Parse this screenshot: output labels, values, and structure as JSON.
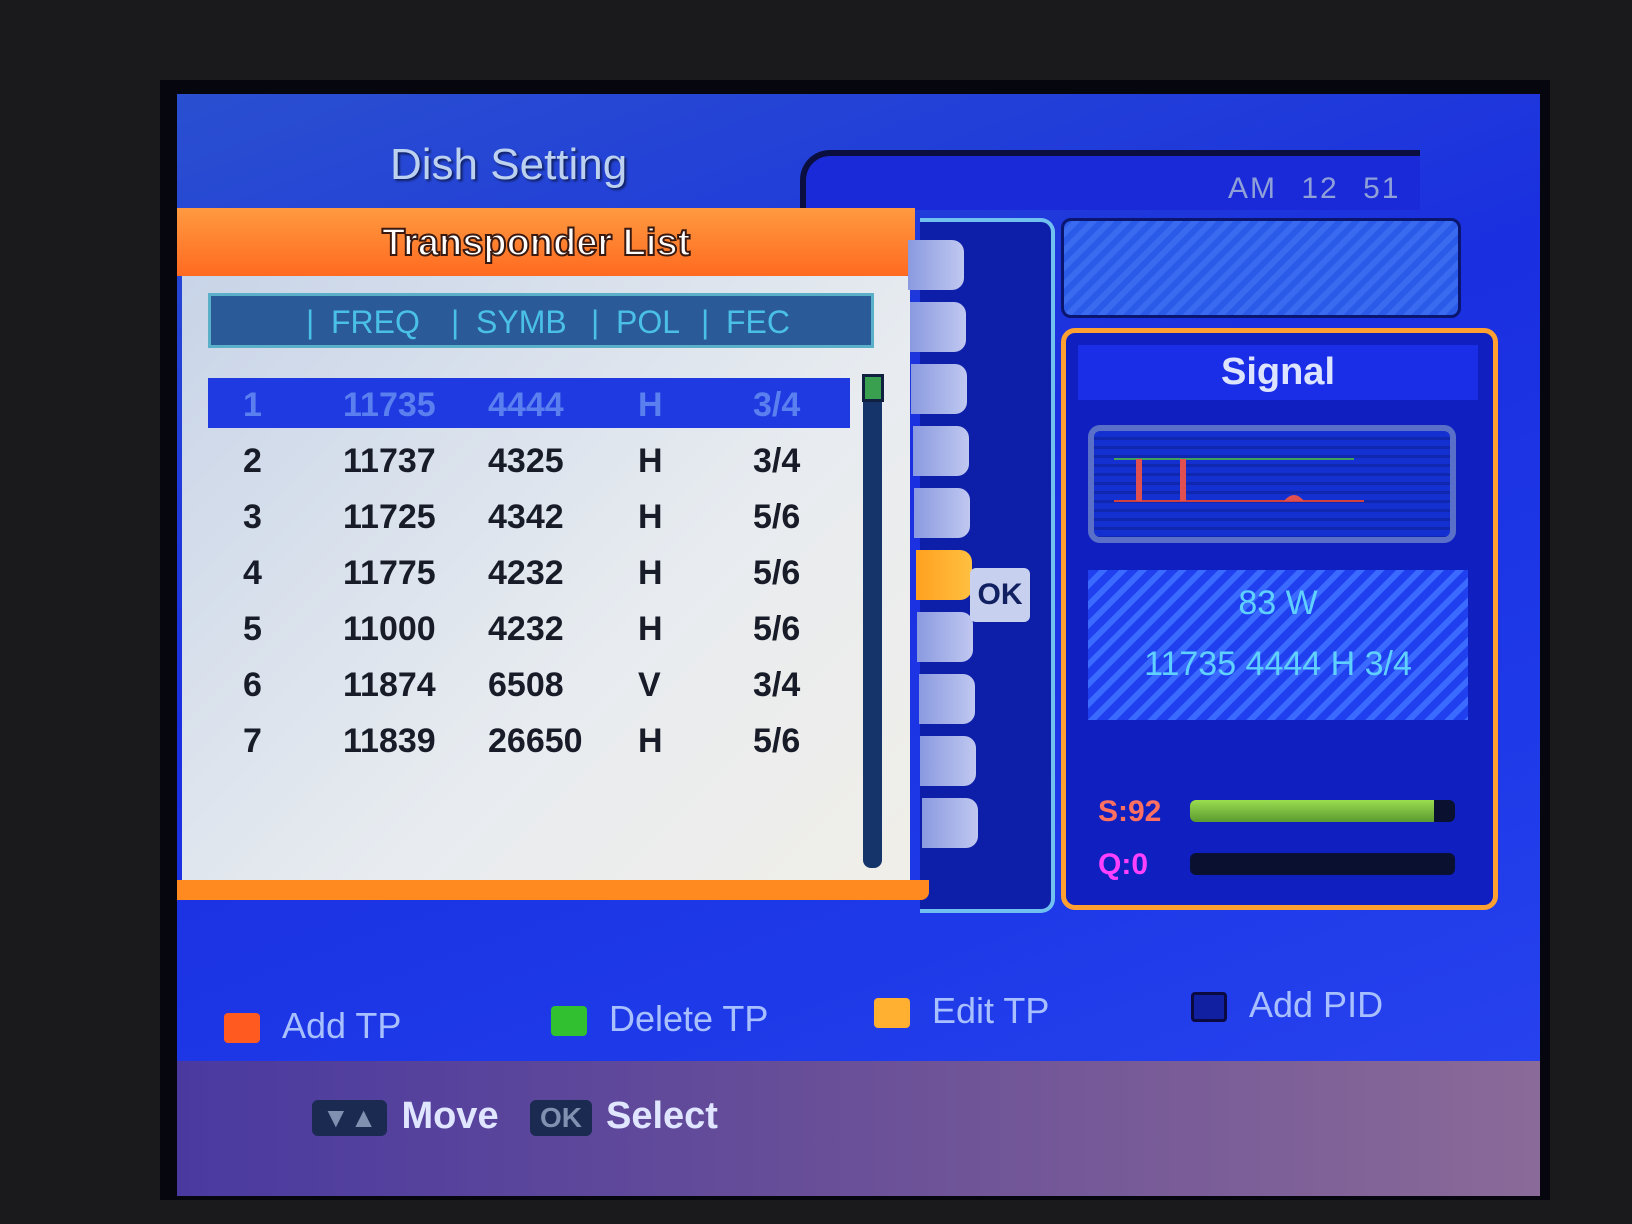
{
  "header": {
    "title": "Dish Setting",
    "time": {
      "ampm": "AM",
      "hour": "12",
      "minute": "51"
    }
  },
  "list": {
    "title": "Transponder List",
    "columns": [
      "FREQ",
      "SYMB",
      "POL",
      "FEC"
    ],
    "rows": [
      {
        "n": "1",
        "freq": "11735",
        "symb": "4444",
        "pol": "H",
        "fec": "3/4"
      },
      {
        "n": "2",
        "freq": "11737",
        "symb": "4325",
        "pol": "H",
        "fec": "3/4"
      },
      {
        "n": "3",
        "freq": "11725",
        "symb": "4342",
        "pol": "H",
        "fec": "5/6"
      },
      {
        "n": "4",
        "freq": "11775",
        "symb": "4232",
        "pol": "H",
        "fec": "5/6"
      },
      {
        "n": "5",
        "freq": "11000",
        "symb": "4232",
        "pol": "H",
        "fec": "5/6"
      },
      {
        "n": "6",
        "freq": "11874",
        "symb": "6508",
        "pol": "V",
        "fec": "3/4"
      },
      {
        "n": "7",
        "freq": "11839",
        "symb": "26650",
        "pol": "H",
        "fec": "5/6"
      }
    ],
    "selected_index": 0
  },
  "side": {
    "ok_label": "OK"
  },
  "signal": {
    "title": "Signal",
    "satellite": "83  W",
    "transponder": "11735 4444 H 3/4",
    "strength_label": "S:92",
    "strength": 92,
    "quality_label": "Q:0",
    "quality": 0
  },
  "keys": [
    {
      "label": "Add TP",
      "color": "#ff5a20"
    },
    {
      "label": "Delete TP",
      "color": "#30c030"
    },
    {
      "label": "Edit TP",
      "color": "#ffb030"
    },
    {
      "label": "Add PID",
      "color": "#1020a0"
    }
  ],
  "hints": {
    "move_key": "▼▲",
    "move": "Move",
    "select_key": "OK",
    "select": "Select"
  }
}
